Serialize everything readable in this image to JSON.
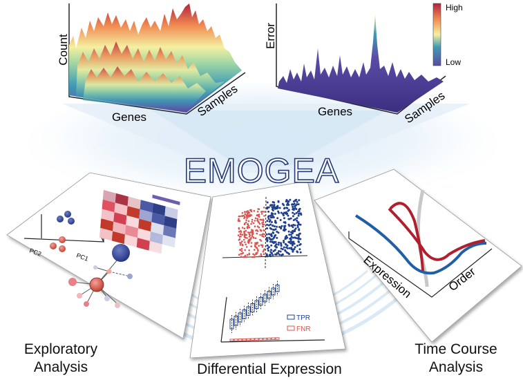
{
  "title": "EMOGEA",
  "top_left_plot": {
    "axis_z": "Count",
    "axis_x": "Genes",
    "axis_y": "Samples"
  },
  "top_right_plot": {
    "axis_z": "Error",
    "axis_x": "Genes",
    "axis_y": "Samples"
  },
  "colorbar": {
    "high": "High",
    "low": "Low"
  },
  "panel_left": {
    "axis_1": "PC1",
    "axis_2": "PC2",
    "caption_line1": "Exploratory",
    "caption_line2": "Analysis"
  },
  "panel_center": {
    "legend": [
      "TPR",
      "FNR"
    ],
    "caption": "Differential Expression"
  },
  "panel_right": {
    "axis_x": "Expression",
    "axis_y": "Order",
    "caption_line1": "Time Course",
    "caption_line2": "Analysis"
  },
  "colors": {
    "red": "#c0392b",
    "blue": "#1f3f8f",
    "title_outline": "#233a7a",
    "glow": "#cfe3f4"
  }
}
